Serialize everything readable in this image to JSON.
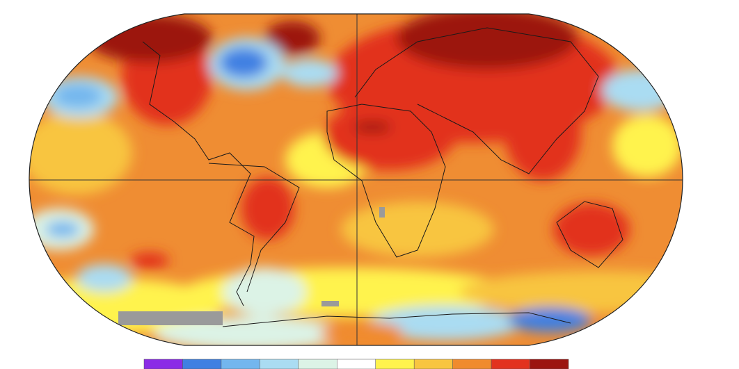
{
  "legend": {
    "colors": [
      "#8b2be6",
      "#3f80e2",
      "#73b6ee",
      "#aadcf2",
      "#dcf3e6",
      "#ffffff",
      "#fff34d",
      "#f8c540",
      "#f08b2e",
      "#e2321f",
      "#9c1410"
    ]
  }
}
